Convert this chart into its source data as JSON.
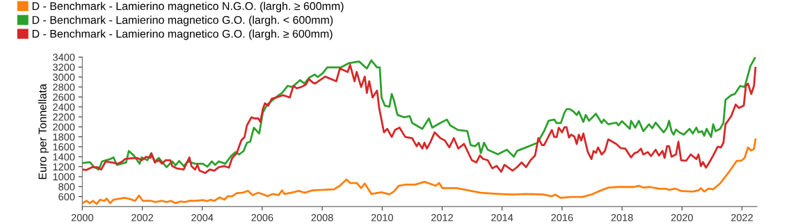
{
  "chart_data": {
    "type": "line",
    "ylabel": "Euro per Tonnellata",
    "legend": "top left",
    "grid": false,
    "marker": "none",
    "line_style": "solid",
    "xlim": [
      2000,
      2022.5
    ],
    "xticks": [
      2000,
      2002,
      2004,
      2006,
      2008,
      2010,
      2012,
      2014,
      2016,
      2018,
      2020,
      2022
    ],
    "ylim": [
      400,
      3400
    ],
    "yticks": [
      600,
      800,
      1000,
      1200,
      1400,
      1600,
      1800,
      2000,
      2200,
      2400,
      2600,
      2800,
      3000,
      3200,
      3400
    ],
    "series": [
      {
        "name": "D - Benchmark - Lamierino magnetico N.G.O. (largh. ≥ 600mm)",
        "color": "#ff7f0e",
        "x": [
          2000.0,
          2000.14,
          2000.25,
          2000.36,
          2000.48,
          2000.59,
          2000.74,
          2000.81,
          2000.93,
          2001.04,
          2001.27,
          2001.42,
          2001.61,
          2001.76,
          2001.89,
          2002.02,
          2002.29,
          2002.44,
          2002.66,
          2002.81,
          2002.96,
          2003.11,
          2003.27,
          2003.42,
          2003.57,
          2003.79,
          2004.02,
          2004.17,
          2004.28,
          2004.4,
          2004.58,
          2004.74,
          2004.85,
          2005.0,
          2005.15,
          2005.34,
          2005.53,
          2005.68,
          2005.87,
          2006.06,
          2006.17,
          2006.36,
          2006.55,
          2006.66,
          2006.74,
          2006.96,
          2007.22,
          2007.41,
          2007.68,
          2008.4,
          2008.59,
          2008.81,
          2008.93,
          2009.15,
          2009.3,
          2009.42,
          2009.64,
          2009.98,
          2010.24,
          2010.39,
          2010.55,
          2010.77,
          2011.1,
          2011.41,
          2011.79,
          2011.9,
          2012.01,
          2012.47,
          2012.69,
          2012.99,
          2013.29,
          2013.9,
          2014.35,
          2014.8,
          2015.37,
          2015.66,
          2015.77,
          2015.96,
          2016.3,
          2016.68,
          2016.98,
          2017.2,
          2017.54,
          2017.88,
          2018.4,
          2018.56,
          2018.71,
          2018.93,
          2019.24,
          2019.47,
          2019.57,
          2019.76,
          2019.99,
          2020.36,
          2020.55,
          2020.63,
          2020.74,
          2020.89,
          2021.04,
          2021.27,
          2021.42,
          2021.57,
          2021.83,
          2021.98,
          2022.09,
          2022.2,
          2022.3,
          2022.4,
          2022.45
        ],
        "values": [
          467,
          514,
          467,
          514,
          453,
          537,
          514,
          560,
          467,
          537,
          560,
          574,
          546,
          514,
          621,
          514,
          514,
          490,
          514,
          490,
          514,
          467,
          500,
          490,
          514,
          514,
          528,
          509,
          537,
          514,
          583,
          537,
          607,
          607,
          668,
          677,
          714,
          630,
          677,
          640,
          607,
          653,
          630,
          724,
          653,
          677,
          714,
          677,
          724,
          747,
          817,
          943,
          873,
          873,
          770,
          863,
          653,
          686,
          644,
          700,
          817,
          840,
          840,
          896,
          817,
          873,
          770,
          770,
          747,
          710,
          677,
          653,
          640,
          653,
          640,
          607,
          640,
          574,
          593,
          593,
          640,
          700,
          780,
          793,
          793,
          817,
          780,
          793,
          756,
          756,
          733,
          761,
          710,
          700,
          724,
          770,
          700,
          761,
          747,
          863,
          980,
          1096,
          1320,
          1320,
          1376,
          1586,
          1525,
          1554,
          1749
        ]
      },
      {
        "name": "D - Benchmark - Lamierino magnetico G.O. (largh. < 600mm)",
        "color": "#2ca02c",
        "x": [
          2000.0,
          2000.25,
          2000.4,
          2000.55,
          2000.66,
          2000.93,
          2001.04,
          2001.15,
          2001.46,
          2001.55,
          2001.72,
          2001.91,
          2001.98,
          2002.17,
          2002.3,
          2002.42,
          2002.55,
          2002.81,
          2003.0,
          2003.11,
          2003.23,
          2003.38,
          2003.53,
          2003.76,
          2004.02,
          2004.17,
          2004.32,
          2004.43,
          2004.55,
          2004.77,
          2004.96,
          2005.11,
          2005.23,
          2005.38,
          2005.49,
          2005.6,
          2005.72,
          2005.9,
          2006.02,
          2006.17,
          2006.4,
          2006.55,
          2006.66,
          2006.85,
          2007.0,
          2007.26,
          2007.41,
          2007.56,
          2007.75,
          2007.85,
          2008.02,
          2008.17,
          2008.63,
          2008.89,
          2009.23,
          2009.49,
          2009.64,
          2009.83,
          2009.92,
          2009.98,
          2010.09,
          2010.24,
          2010.32,
          2010.39,
          2010.51,
          2010.73,
          2010.92,
          2011.0,
          2011.34,
          2011.56,
          2011.67,
          2011.94,
          2012.16,
          2012.27,
          2012.53,
          2012.84,
          2012.95,
          2013.1,
          2013.22,
          2013.29,
          2013.4,
          2013.52,
          2013.86,
          2014.16,
          2014.31,
          2014.39,
          2014.5,
          2014.8,
          2015.18,
          2015.4,
          2015.55,
          2015.74,
          2015.82,
          2015.96,
          2016.08,
          2016.15,
          2016.26,
          2016.38,
          2016.49,
          2016.56,
          2016.71,
          2016.79,
          2016.9,
          2017.13,
          2017.32,
          2017.39,
          2017.54,
          2017.81,
          2017.88,
          2018.0,
          2018.26,
          2018.3,
          2018.44,
          2018.56,
          2018.71,
          2018.9,
          2019.01,
          2019.12,
          2019.39,
          2019.5,
          2019.57,
          2019.65,
          2019.72,
          2019.8,
          2019.91,
          2020.06,
          2020.25,
          2020.36,
          2020.48,
          2020.55,
          2020.67,
          2020.74,
          2020.82,
          2020.97,
          2021.04,
          2021.12,
          2021.27,
          2021.38,
          2021.45,
          2021.64,
          2021.76,
          2021.94,
          2022.09,
          2022.28,
          2022.43
        ],
        "values": [
          1274,
          1292,
          1190,
          1143,
          1306,
          1353,
          1386,
          1236,
          1283,
          1516,
          1423,
          1260,
          1386,
          1330,
          1470,
          1306,
          1376,
          1190,
          1306,
          1228,
          1316,
          1213,
          1306,
          1260,
          1260,
          1200,
          1306,
          1236,
          1306,
          1260,
          1414,
          1493,
          1446,
          1516,
          1680,
          1703,
          1983,
          1866,
          2286,
          2449,
          2565,
          2635,
          2682,
          2822,
          2799,
          2938,
          2869,
          2985,
          3050,
          3000,
          3079,
          3195,
          3195,
          3279,
          3312,
          3172,
          3335,
          3195,
          3195,
          2589,
          2426,
          2403,
          2660,
          2540,
          2240,
          2193,
          2216,
          2077,
          1960,
          2170,
          1984,
          2077,
          2146,
          2030,
          1937,
          1914,
          1634,
          1611,
          1680,
          1471,
          1680,
          1541,
          1448,
          1541,
          1448,
          1401,
          1518,
          1588,
          1681,
          1914,
          2122,
          2146,
          2076,
          2076,
          2286,
          2356,
          2356,
          2309,
          2239,
          2309,
          2099,
          2239,
          2122,
          2262,
          2076,
          2146,
          2052,
          2085,
          2030,
          2113,
          1960,
          2122,
          1983,
          2122,
          1913,
          2052,
          1973,
          2085,
          1889,
          1983,
          2122,
          1913,
          1843,
          1945,
          1889,
          1843,
          1960,
          1866,
          1983,
          1889,
          1913,
          1820,
          1960,
          1796,
          2052,
          1913,
          1960,
          2076,
          2542,
          2635,
          2659,
          2822,
          2799,
          3218,
          3381
        ]
      },
      {
        "name": "D - Benchmark - Lamierino magnetico G.O. (largh. ≥ 600mm)",
        "color": "#d62728",
        "x": [
          2000.0,
          2000.14,
          2000.33,
          2000.51,
          2000.63,
          2000.78,
          2001.0,
          2001.19,
          2001.34,
          2001.42,
          2001.61,
          2001.83,
          2001.98,
          2002.13,
          2002.27,
          2002.3,
          2002.42,
          2002.55,
          2002.66,
          2002.78,
          2002.93,
          2003.0,
          2003.15,
          2003.38,
          2003.57,
          2003.64,
          2003.76,
          2003.84,
          2003.91,
          2004.1,
          2004.25,
          2004.4,
          2004.55,
          2004.74,
          2004.89,
          2005.0,
          2005.15,
          2005.3,
          2005.41,
          2005.49,
          2005.64,
          2005.75,
          2005.87,
          2005.94,
          2006.02,
          2006.09,
          2006.2,
          2006.32,
          2006.47,
          2006.58,
          2006.7,
          2006.81,
          2006.92,
          2007.04,
          2007.15,
          2007.3,
          2007.45,
          2007.56,
          2007.68,
          2007.76,
          2008.1,
          2008.47,
          2008.59,
          2008.85,
          2008.93,
          2009.08,
          2009.15,
          2009.3,
          2009.42,
          2009.49,
          2009.57,
          2009.68,
          2009.83,
          2009.9,
          2010.06,
          2010.17,
          2010.32,
          2010.43,
          2010.58,
          2010.77,
          2011.0,
          2011.15,
          2011.22,
          2011.34,
          2011.41,
          2011.49,
          2011.6,
          2011.75,
          2011.94,
          2012.09,
          2012.24,
          2012.39,
          2012.54,
          2012.73,
          2012.99,
          2013.14,
          2013.26,
          2013.37,
          2013.52,
          2013.67,
          2013.82,
          2013.97,
          2014.08,
          2014.35,
          2014.5,
          2014.65,
          2014.8,
          2014.95,
          2015.1,
          2015.21,
          2015.33,
          2015.4,
          2015.66,
          2015.74,
          2015.82,
          2015.89,
          2016.0,
          2016.08,
          2016.15,
          2016.23,
          2016.3,
          2016.41,
          2016.49,
          2016.56,
          2016.64,
          2016.71,
          2016.86,
          2016.98,
          2017.05,
          2017.13,
          2017.2,
          2017.32,
          2017.43,
          2017.54,
          2017.81,
          2017.96,
          2018.11,
          2018.3,
          2018.41,
          2018.52,
          2018.63,
          2018.71,
          2018.86,
          2018.97,
          2019.12,
          2019.23,
          2019.35,
          2019.42,
          2019.5,
          2019.57,
          2019.65,
          2019.8,
          2019.88,
          2019.97,
          2020.14,
          2020.29,
          2020.48,
          2020.55,
          2020.63,
          2020.7,
          2020.8,
          2020.93,
          2021.04,
          2021.19,
          2021.3,
          2021.38,
          2021.45,
          2021.64,
          2021.79,
          2021.9,
          2022.06,
          2022.13,
          2022.2,
          2022.31,
          2022.4,
          2022.45
        ],
        "values": [
          1143,
          1134,
          1190,
          1190,
          1143,
          1306,
          1283,
          1260,
          1306,
          1353,
          1367,
          1376,
          1330,
          1400,
          1376,
          1470,
          1283,
          1330,
          1260,
          1330,
          1330,
          1213,
          1166,
          1143,
          1386,
          1213,
          1143,
          1236,
          1120,
          1073,
          1143,
          1120,
          1190,
          1213,
          1180,
          1376,
          1470,
          1726,
          1796,
          2029,
          2192,
          2169,
          2169,
          2099,
          2356,
          2472,
          2426,
          2565,
          2589,
          2612,
          2635,
          2612,
          2589,
          2822,
          2775,
          2799,
          2845,
          2962,
          2892,
          2869,
          3009,
          2916,
          3172,
          3102,
          3242,
          2916,
          3102,
          2799,
          3009,
          2682,
          2916,
          2589,
          2729,
          2380,
          1890,
          1960,
          1797,
          1937,
          1984,
          1797,
          1774,
          1611,
          1681,
          1564,
          1681,
          1564,
          1681,
          1890,
          1774,
          1727,
          1588,
          1774,
          1564,
          1658,
          1331,
          1285,
          1425,
          1355,
          1331,
          1168,
          1215,
          1098,
          1238,
          1121,
          1191,
          1285,
          1191,
          1331,
          1425,
          1774,
          1634,
          1633,
          1936,
          1796,
          1796,
          1983,
          1889,
          1992,
          1992,
          1787,
          1843,
          1805,
          1656,
          1843,
          1726,
          1866,
          1493,
          1353,
          1516,
          1479,
          1586,
          1446,
          1516,
          1749,
          1656,
          1572,
          1563,
          1386,
          1469,
          1493,
          1563,
          1446,
          1493,
          1414,
          1540,
          1423,
          1516,
          1376,
          1610,
          1610,
          1400,
          1446,
          1703,
          1330,
          1320,
          1446,
          1353,
          1446,
          1213,
          1292,
          1181,
          1306,
          1423,
          1600,
          1586,
          1680,
          2052,
          2215,
          2449,
          2379,
          2426,
          2822,
          2868,
          2659,
          2822,
          3186
        ]
      }
    ]
  }
}
